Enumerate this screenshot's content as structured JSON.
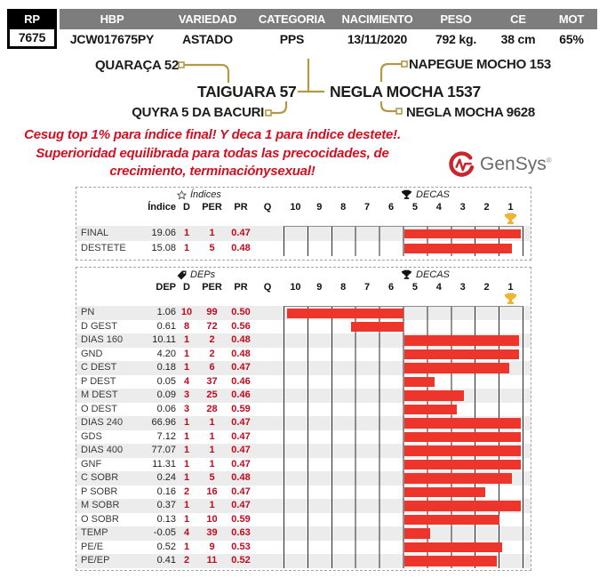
{
  "info_bar": {
    "columns": [
      {
        "label": "RP",
        "value": "7675"
      },
      {
        "label": "HBP",
        "value": "JCW017675PY"
      },
      {
        "label": "VARIEDAD",
        "value": "ASTADO"
      },
      {
        "label": "CATEGORIA",
        "value": "PPS"
      },
      {
        "label": "NACIMIENTO",
        "value": "13/11/2020"
      },
      {
        "label": "PESO",
        "value": "792 kg."
      },
      {
        "label": "CE",
        "value": "38 cm"
      },
      {
        "label": "MOT",
        "value": "65%"
      }
    ]
  },
  "pedigree": {
    "sire_sire": "QUARAÇA 52",
    "sire": "TAIGUARA 57",
    "sire_dam": "QUYRA 5 DA BACURI",
    "dam_sire": "NAPEGUE MOCHO 153",
    "dam": "NEGLA MOCHA 1537",
    "dam_dam": "NEGLA MOCHA 9628",
    "connector_color": "#b09a45"
  },
  "note": {
    "lines": [
      "Cesug top 1% para índice final! Y deca 1 para índice destete!.",
      "Superioridad equilibrada para todas las precocidades, de",
      "crecimiento, terminaciónysexual!"
    ],
    "color": "#d31021"
  },
  "logo": {
    "name": "GenSys",
    "reg": "®",
    "mark_color": "#c9252c"
  },
  "colors": {
    "bar_red": "#ee352c",
    "stat_red": "#c10b1f",
    "header_gray": "#7d7d7d",
    "gold": "#b09a45",
    "trophy_gold": "#f2b52c",
    "stripe_gray": "#ececec"
  },
  "chart_data": [
    {
      "type": "bar",
      "title": "Índices",
      "icon": "star-icon",
      "decas_title": "DECAS",
      "decas_icon": "trophy-icon",
      "marker_icon": "gold-trophy-icon",
      "columns": [
        "Índice",
        "D",
        "PER",
        "PR",
        "Q"
      ],
      "decile_scale": [
        10,
        9,
        8,
        7,
        6,
        5,
        4,
        3,
        2,
        1
      ],
      "axis_note": "deciles: 10 = worst (left) to 1 = best (right); bars run from percentile 50 (center) to the animal's PER",
      "bar_anchor_percentile": 50,
      "rows": [
        {
          "label": "FINAL",
          "value": "19.06",
          "d": "1",
          "per": "1",
          "pr": "0.47",
          "q": ""
        },
        {
          "label": "DESTETE",
          "value": "15.08",
          "d": "1",
          "per": "5",
          "pr": "0.48",
          "q": ""
        }
      ]
    },
    {
      "type": "bar",
      "title": "DEPs",
      "icon": "tag-icon",
      "decas_title": "DECAS",
      "decas_icon": "trophy-icon",
      "marker_icon": "gold-trophy-icon",
      "columns": [
        "DEP",
        "D",
        "PER",
        "PR",
        "Q"
      ],
      "decile_scale": [
        10,
        9,
        8,
        7,
        6,
        5,
        4,
        3,
        2,
        1
      ],
      "axis_note": "deciles: 10 = worst (left) to 1 = best (right); bars run from percentile 50 (center) to the animal's PER",
      "bar_anchor_percentile": 50,
      "rows": [
        {
          "label": "PN",
          "value": "1.06",
          "d": "10",
          "per": "99",
          "pr": "0.50",
          "q": ""
        },
        {
          "label": "D GEST",
          "value": "0.61",
          "d": "8",
          "per": "72",
          "pr": "0.56",
          "q": ""
        },
        {
          "label": "DIAS 160",
          "value": "10.11",
          "d": "1",
          "per": "2",
          "pr": "0.48",
          "q": ""
        },
        {
          "label": "GND",
          "value": "4.20",
          "d": "1",
          "per": "2",
          "pr": "0.48",
          "q": ""
        },
        {
          "label": "C DEST",
          "value": "0.18",
          "d": "1",
          "per": "6",
          "pr": "0.47",
          "q": ""
        },
        {
          "label": "P DEST",
          "value": "0.05",
          "d": "4",
          "per": "37",
          "pr": "0.46",
          "q": ""
        },
        {
          "label": "M DEST",
          "value": "0.09",
          "d": "3",
          "per": "25",
          "pr": "0.46",
          "q": ""
        },
        {
          "label": "O DEST",
          "value": "0.06",
          "d": "3",
          "per": "28",
          "pr": "0.59",
          "q": ""
        },
        {
          "label": "DIAS 240",
          "value": "66.96",
          "d": "1",
          "per": "1",
          "pr": "0.47",
          "q": ""
        },
        {
          "label": "GDS",
          "value": "7.12",
          "d": "1",
          "per": "1",
          "pr": "0.47",
          "q": ""
        },
        {
          "label": "DIAS 400",
          "value": "77.07",
          "d": "1",
          "per": "1",
          "pr": "0.47",
          "q": ""
        },
        {
          "label": "GNF",
          "value": "11.31",
          "d": "1",
          "per": "1",
          "pr": "0.47",
          "q": ""
        },
        {
          "label": "C SOBR",
          "value": "0.24",
          "d": "1",
          "per": "5",
          "pr": "0.48",
          "q": ""
        },
        {
          "label": "P SOBR",
          "value": "0.16",
          "d": "2",
          "per": "16",
          "pr": "0.47",
          "q": ""
        },
        {
          "label": "M SOBR",
          "value": "0.37",
          "d": "1",
          "per": "1",
          "pr": "0.47",
          "q": ""
        },
        {
          "label": "O SOBR",
          "value": "0.13",
          "d": "1",
          "per": "10",
          "pr": "0.59",
          "q": ""
        },
        {
          "label": "TEMP",
          "value": "-0.05",
          "d": "4",
          "per": "39",
          "pr": "0.63",
          "q": ""
        },
        {
          "label": "PE/E",
          "value": "0.52",
          "d": "1",
          "per": "9",
          "pr": "0.53",
          "q": ""
        },
        {
          "label": "PE/EP",
          "value": "0.41",
          "d": "2",
          "per": "11",
          "pr": "0.52",
          "q": ""
        }
      ]
    }
  ]
}
